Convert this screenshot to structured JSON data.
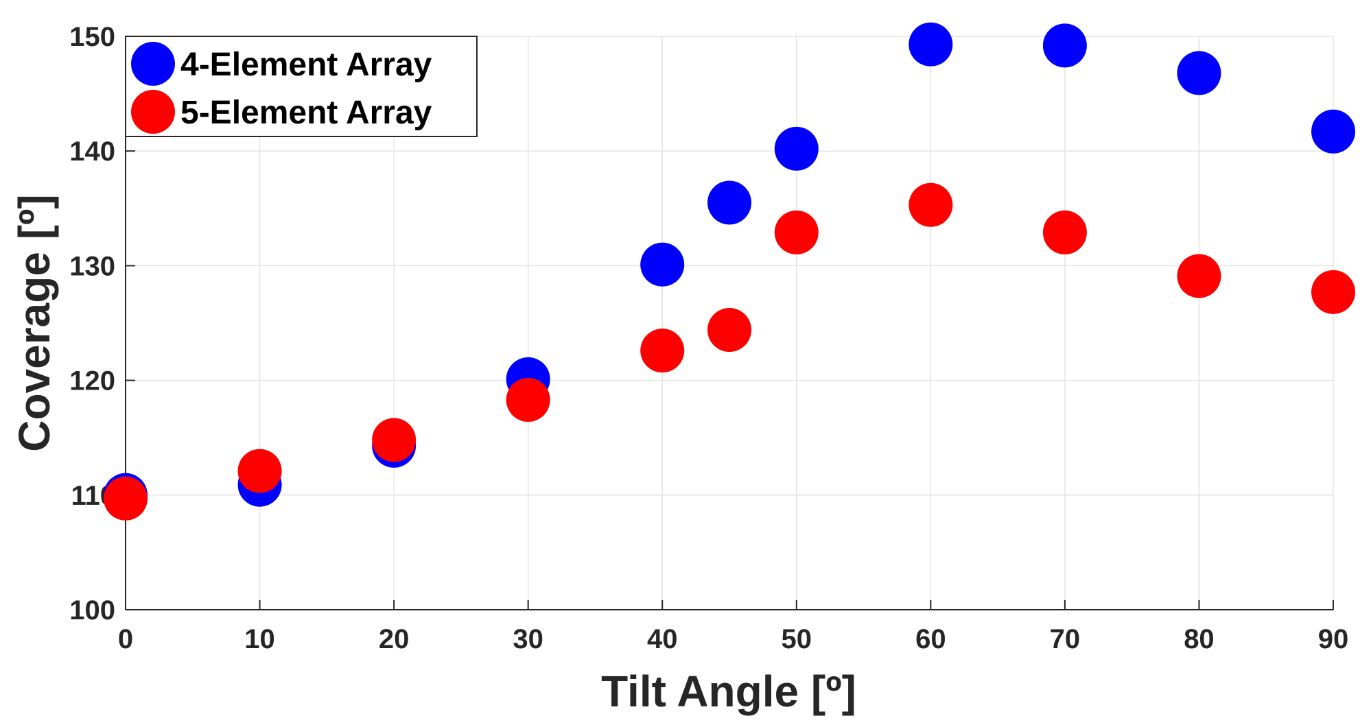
{
  "chart_data": {
    "type": "scatter",
    "xlabel": "Tilt Angle [º]",
    "ylabel": "Coverage [º]",
    "xlim": [
      0,
      90
    ],
    "ylim": [
      100,
      150
    ],
    "xticks": [
      0,
      10,
      20,
      30,
      40,
      50,
      60,
      70,
      80,
      90
    ],
    "yticks": [
      100,
      110,
      120,
      130,
      140,
      150
    ],
    "grid": true,
    "legend_position": "top-left",
    "series": [
      {
        "name": "4-Element Array",
        "color": "#0000FF",
        "x": [
          0,
          10,
          20,
          30,
          40,
          45,
          50,
          60,
          70,
          80,
          90
        ],
        "y": [
          110.0,
          110.9,
          114.3,
          120.1,
          130.1,
          135.5,
          140.2,
          149.3,
          149.2,
          146.8,
          141.7
        ]
      },
      {
        "name": "5-Element Array",
        "color": "#FF0000",
        "x": [
          0,
          10,
          20,
          30,
          40,
          45,
          50,
          60,
          70,
          80,
          90
        ],
        "y": [
          109.7,
          112.1,
          114.8,
          118.3,
          122.6,
          124.4,
          132.9,
          135.3,
          132.9,
          129.1,
          127.7
        ]
      }
    ]
  }
}
